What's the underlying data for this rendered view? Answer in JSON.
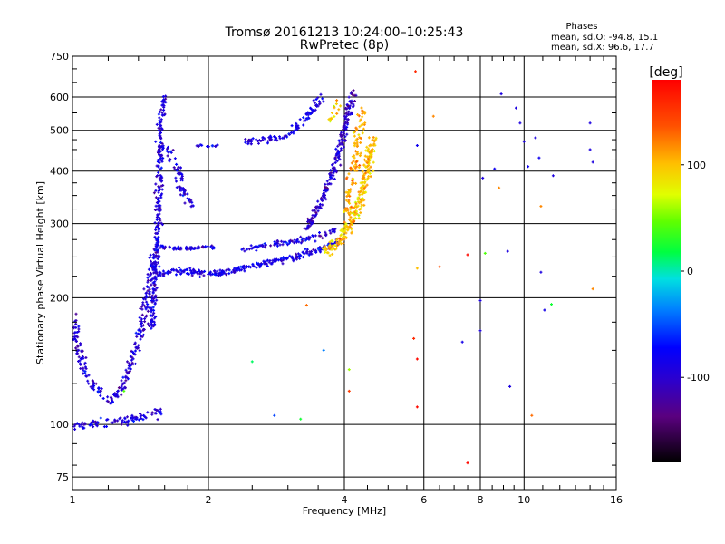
{
  "header": {
    "title": "Tromsø 20161213 10:24:00–10:25:43",
    "subtitle": "RwPretec (8p)",
    "stats_heading": "Phases",
    "stats_o": "mean, sd,O: -94.8, 15.1",
    "stats_x": "mean, sd,X: 96.6, 17.7"
  },
  "chart_data": {
    "type": "scatter",
    "xlabel": "Frequency [MHz]",
    "ylabel": "Stationary phase Virtual Height [km]",
    "xscale": "log",
    "yscale": "log",
    "xlim": [
      1,
      16
    ],
    "ylim": [
      70,
      750
    ],
    "xticks": [
      1,
      2,
      4,
      6,
      8,
      10,
      16
    ],
    "yticks": [
      75,
      100,
      200,
      300,
      400,
      500,
      600,
      750
    ],
    "grid": true,
    "colorbar": {
      "label": "[deg]",
      "range": [
        -180,
        180
      ],
      "ticks": [
        100,
        0,
        -100
      ],
      "colormap": "rainbow (black-purple-blue-cyan-green-yellow-orange-red)"
    },
    "o_mode_phase_mean": -94.8,
    "x_mode_phase_mean": 96.6,
    "traces": [
      {
        "name": "",
        "phase": -100,
        "spread": [
          0.006,
          0.012
        ],
        "density": 1.0,
        "points": [
          [
            1.0,
            99
          ],
          [
            1.2,
            101
          ],
          [
            1.35,
            103
          ],
          [
            1.5,
            106
          ],
          [
            1.6,
            108
          ]
        ]
      },
      {
        "name": "",
        "phase": -105,
        "spread": [
          0.01,
          0.014
        ],
        "density": 1.0,
        "points": [
          [
            1.0,
            185
          ],
          [
            1.03,
            150
          ],
          [
            1.08,
            130
          ],
          [
            1.15,
            118
          ],
          [
            1.22,
            112
          ],
          [
            1.3,
            125
          ],
          [
            1.38,
            150
          ],
          [
            1.43,
            175
          ],
          [
            1.46,
            200
          ],
          [
            1.49,
            230
          ],
          [
            1.53,
            260
          ]
        ]
      },
      {
        "name": "",
        "phase": -100,
        "spread": [
          0.008,
          0.01
        ],
        "density": 1.2,
        "points": [
          [
            1.5,
            170
          ],
          [
            1.52,
            220
          ],
          [
            1.55,
            300
          ],
          [
            1.56,
            400
          ],
          [
            1.56,
            500
          ],
          [
            1.58,
            560
          ],
          [
            1.6,
            600
          ]
        ]
      },
      {
        "name": "",
        "phase": -100,
        "spread": [
          0.012,
          0.012
        ],
        "density": 1.0,
        "points": [
          [
            1.58,
            460
          ],
          [
            1.65,
            440
          ],
          [
            1.72,
            400
          ],
          [
            1.75,
            360
          ],
          [
            1.8,
            340
          ],
          [
            1.85,
            330
          ]
        ]
      },
      {
        "name": "",
        "phase": -100,
        "spread": [
          0.01,
          0.006
        ],
        "density": 1.0,
        "points": [
          [
            1.55,
            265
          ],
          [
            1.65,
            262
          ],
          [
            1.8,
            262
          ],
          [
            1.95,
            264
          ],
          [
            2.05,
            264
          ]
        ]
      },
      {
        "name": "",
        "phase": -95,
        "spread": [
          0.012,
          0.008
        ],
        "density": 1.4,
        "points": [
          [
            1.55,
            228
          ],
          [
            1.7,
            232
          ],
          [
            1.85,
            230
          ],
          [
            2.0,
            228
          ],
          [
            2.2,
            230
          ],
          [
            2.4,
            236
          ],
          [
            2.7,
            242
          ],
          [
            3.0,
            248
          ],
          [
            3.3,
            255
          ],
          [
            3.6,
            262
          ],
          [
            3.9,
            272
          ]
        ]
      },
      {
        "name": "",
        "phase": -100,
        "spread": [
          0.01,
          0.008
        ],
        "density": 1.0,
        "points": [
          [
            2.4,
            262
          ],
          [
            2.6,
            265
          ],
          [
            2.9,
            270
          ],
          [
            3.2,
            275
          ],
          [
            3.5,
            280
          ],
          [
            3.8,
            290
          ]
        ]
      },
      {
        "name": "",
        "phase": -110,
        "spread": [
          0.01,
          0.012
        ],
        "density": 1.4,
        "points": [
          [
            3.3,
            290
          ],
          [
            3.45,
            320
          ],
          [
            3.6,
            350
          ],
          [
            3.8,
            400
          ],
          [
            3.9,
            450
          ],
          [
            4.0,
            500
          ],
          [
            4.1,
            560
          ],
          [
            4.2,
            620
          ]
        ]
      },
      {
        "name": "",
        "phase": -95,
        "spread": [
          0.01,
          0.008
        ],
        "density": 1.0,
        "points": [
          [
            2.4,
            470
          ],
          [
            2.7,
            475
          ],
          [
            3.0,
            485
          ],
          [
            3.2,
            520
          ],
          [
            3.4,
            560
          ],
          [
            3.6,
            610
          ]
        ]
      },
      {
        "name": "",
        "phase": -100,
        "spread": [
          0.008,
          0.004
        ],
        "density": 0.6,
        "points": [
          [
            1.9,
            458
          ],
          [
            2.0,
            458
          ],
          [
            2.1,
            460
          ]
        ]
      },
      {
        "name": "",
        "phase": 100,
        "spread": [
          0.014,
          0.014
        ],
        "density": 1.8,
        "points": [
          [
            3.6,
            258
          ],
          [
            3.9,
            270
          ],
          [
            4.1,
            300
          ],
          [
            4.3,
            330
          ],
          [
            4.45,
            380
          ],
          [
            4.55,
            430
          ],
          [
            4.65,
            480
          ]
        ]
      },
      {
        "name": "",
        "phase": 110,
        "spread": [
          0.012,
          0.018
        ],
        "density": 1.0,
        "points": [
          [
            4.05,
            320
          ],
          [
            4.15,
            380
          ],
          [
            4.25,
            440
          ],
          [
            4.3,
            500
          ],
          [
            4.4,
            560
          ]
        ]
      },
      {
        "name": "",
        "phase": 95,
        "spread": [
          0.008,
          0.012
        ],
        "density": 0.6,
        "points": [
          [
            3.7,
            520
          ],
          [
            3.8,
            560
          ],
          [
            3.9,
            580
          ]
        ]
      }
    ],
    "outliers": [
      [
        5.75,
        690,
        160
      ],
      [
        6.3,
        540,
        120
      ],
      [
        6.5,
        237,
        140
      ],
      [
        7.5,
        253,
        175
      ],
      [
        7.5,
        81,
        175
      ],
      [
        7.3,
        157,
        -95
      ],
      [
        8.1,
        385,
        -100
      ],
      [
        8.0,
        197,
        -100
      ],
      [
        8.0,
        167,
        -100
      ],
      [
        8.2,
        255,
        40
      ],
      [
        8.6,
        405,
        -90
      ],
      [
        8.8,
        365,
        120
      ],
      [
        8.9,
        610,
        -100
      ],
      [
        9.2,
        258,
        -100
      ],
      [
        9.6,
        565,
        -100
      ],
      [
        9.8,
        520,
        -100
      ],
      [
        10.0,
        470,
        -100
      ],
      [
        10.2,
        410,
        -90
      ],
      [
        10.6,
        480,
        -100
      ],
      [
        10.8,
        430,
        -90
      ],
      [
        10.9,
        330,
        120
      ],
      [
        10.9,
        230,
        -100
      ],
      [
        11.5,
        193,
        20
      ],
      [
        11.1,
        187,
        -95
      ],
      [
        14.2,
        420,
        -100
      ],
      [
        14.2,
        210,
        120
      ],
      [
        14.0,
        520,
        -100
      ],
      [
        14.0,
        450,
        -100
      ],
      [
        3.6,
        150,
        -40
      ],
      [
        3.2,
        103,
        20
      ],
      [
        2.8,
        105,
        -60
      ],
      [
        2.5,
        141,
        10
      ],
      [
        5.8,
        143,
        175
      ],
      [
        5.8,
        110,
        175
      ],
      [
        5.7,
        160,
        160
      ],
      [
        4.1,
        120,
        150
      ],
      [
        4.1,
        135,
        60
      ],
      [
        3.3,
        192,
        130
      ],
      [
        5.8,
        460,
        -90
      ],
      [
        11.6,
        390,
        -100
      ],
      [
        10.4,
        105,
        130
      ],
      [
        5.8,
        235,
        100
      ],
      [
        1.3,
        120,
        40
      ],
      [
        9.3,
        123,
        -100
      ]
    ]
  }
}
